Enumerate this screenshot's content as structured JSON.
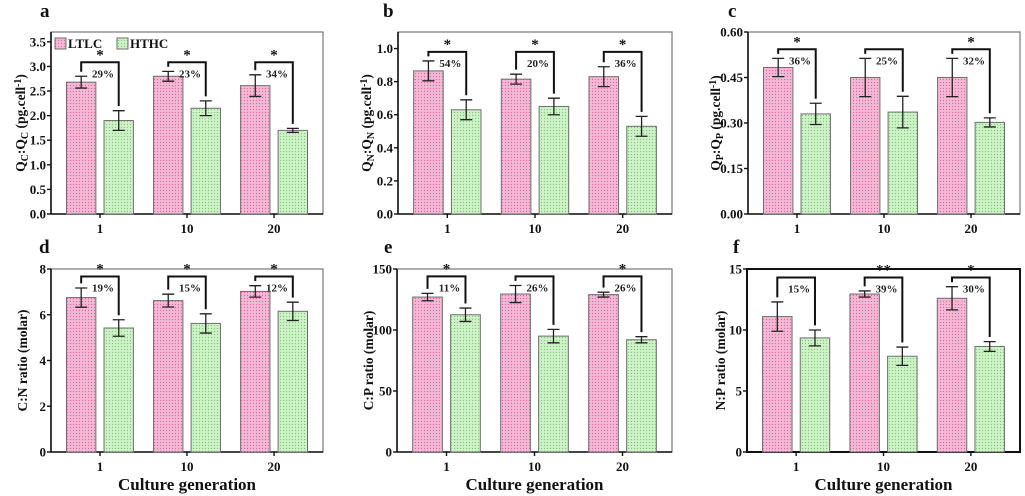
{
  "colors": {
    "LTLC": "#f5b8d4",
    "LTLC_dot": "#d9669e",
    "HTHC": "#ccf2c6",
    "HTHC_dot": "#7fc47a",
    "edge": "#6e6e6e"
  },
  "chart_data": [
    {
      "type": "bar",
      "letter": "a",
      "categories": [
        "1",
        "10",
        "20"
      ],
      "ylabel": [
        {
          "t": "Q"
        },
        {
          "t": "C",
          "sub": true
        },
        {
          "t": ":Q"
        },
        {
          "t": "C",
          "sub": true
        },
        {
          "t": " (pg.cell"
        },
        {
          "t": "-1",
          "sup": true
        },
        {
          "t": ")"
        }
      ],
      "xlabel": "",
      "ylim": [
        0,
        3.7
      ],
      "yticks": [
        "0.0",
        "0.5",
        "1.0",
        "1.5",
        "2.0",
        "2.5",
        "3.0",
        "3.5"
      ],
      "legend": {
        "placement": "top-left",
        "entries": [
          "LTLC",
          "HTHC"
        ]
      },
      "series": [
        {
          "name": "LTLC",
          "values": [
            2.68,
            2.8,
            2.61
          ],
          "errors": [
            0.12,
            0.1,
            0.22
          ]
        },
        {
          "name": "HTHC",
          "values": [
            1.9,
            2.15,
            1.7
          ],
          "errors": [
            0.2,
            0.15,
            0.04
          ]
        }
      ],
      "annotations": {
        "stars": [
          "*",
          "*",
          "*"
        ],
        "percents": [
          "29%",
          "23%",
          "34%"
        ]
      }
    },
    {
      "type": "bar",
      "letter": "b",
      "categories": [
        "1",
        "10",
        "20"
      ],
      "ylabel": [
        {
          "t": "Q"
        },
        {
          "t": "N",
          "sub": true
        },
        {
          "t": ":Q"
        },
        {
          "t": "N",
          "sub": true
        },
        {
          "t": " (pg.cell"
        },
        {
          "t": "-1",
          "sup": true
        },
        {
          "t": ")"
        }
      ],
      "xlabel": "",
      "ylim": [
        0,
        1.1
      ],
      "yticks": [
        "0.0",
        "0.2",
        "0.4",
        "0.6",
        "0.8",
        "1.0"
      ],
      "series": [
        {
          "name": "LTLC",
          "values": [
            0.865,
            0.815,
            0.83
          ],
          "errors": [
            0.06,
            0.03,
            0.06
          ]
        },
        {
          "name": "HTHC",
          "values": [
            0.63,
            0.65,
            0.53
          ],
          "errors": [
            0.06,
            0.05,
            0.06
          ]
        }
      ],
      "annotations": {
        "stars": [
          "*",
          "*",
          "*"
        ],
        "percents": [
          "54%",
          "20%",
          "36%"
        ]
      }
    },
    {
      "type": "bar",
      "letter": "c",
      "categories": [
        "1",
        "10",
        "20"
      ],
      "ylabel": [
        {
          "t": "Q"
        },
        {
          "t": "P",
          "sub": true
        },
        {
          "t": ":Q"
        },
        {
          "t": "P",
          "sub": true
        },
        {
          "t": " (pg.cell"
        },
        {
          "t": "-1",
          "sup": true
        },
        {
          "t": ")"
        }
      ],
      "xlabel": "",
      "ylim": [
        0,
        0.6
      ],
      "yticks": [
        "0.00",
        "0.15",
        "0.30",
        "0.45",
        "0.60"
      ],
      "series": [
        {
          "name": "LTLC",
          "values": [
            0.483,
            0.45,
            0.45
          ],
          "errors": [
            0.03,
            0.063,
            0.063
          ]
        },
        {
          "name": "HTHC",
          "values": [
            0.33,
            0.336,
            0.302
          ],
          "errors": [
            0.035,
            0.052,
            0.015
          ]
        }
      ],
      "annotations": {
        "stars": [
          "*",
          "",
          "*"
        ],
        "percents": [
          "36%",
          "25%",
          "32%"
        ]
      }
    },
    {
      "type": "bar",
      "letter": "d",
      "categories": [
        "1",
        "10",
        "20"
      ],
      "ylabel": [
        {
          "t": "C:N ratio (molar)"
        }
      ],
      "xlabel": "Culture generation",
      "ylim": [
        0,
        8
      ],
      "yticks": [
        "0",
        "2",
        "4",
        "6",
        "8"
      ],
      "series": [
        {
          "name": "LTLC",
          "values": [
            6.75,
            6.62,
            7.02
          ],
          "errors": [
            0.42,
            0.28,
            0.25
          ]
        },
        {
          "name": "HTHC",
          "values": [
            5.42,
            5.62,
            6.15
          ],
          "errors": [
            0.36,
            0.42,
            0.4
          ]
        }
      ],
      "annotations": {
        "stars": [
          "*",
          "*",
          "*"
        ],
        "percents": [
          "19%",
          "15%",
          "12%"
        ]
      }
    },
    {
      "type": "bar",
      "letter": "e",
      "categories": [
        "1",
        "10",
        "20"
      ],
      "ylabel": [
        {
          "t": "C:P ratio (molar)"
        }
      ],
      "xlabel": "Culture generation",
      "ylim": [
        0,
        150
      ],
      "yticks": [
        "0",
        "50",
        "100",
        "150"
      ],
      "series": [
        {
          "name": "LTLC",
          "values": [
            127,
            129.5,
            129
          ],
          "errors": [
            3,
            7,
            2
          ]
        },
        {
          "name": "HTHC",
          "values": [
            112.5,
            95,
            92
          ],
          "errors": [
            5.5,
            5.5,
            2.5
          ]
        }
      ],
      "annotations": {
        "stars": [
          "*",
          "",
          "*"
        ],
        "percents": [
          "11%",
          "26%",
          "26%"
        ]
      }
    },
    {
      "type": "bar",
      "letter": "f",
      "categories": [
        "1",
        "10",
        "20"
      ],
      "ylabel": [
        {
          "t": "N:P ratio (molar)"
        }
      ],
      "xlabel": "Culture generation",
      "ylim": [
        0,
        15
      ],
      "yticks": [
        "0",
        "5",
        "10",
        "15"
      ],
      "series": [
        {
          "name": "LTLC",
          "values": [
            11.1,
            12.95,
            12.6
          ],
          "errors": [
            1.2,
            0.25,
            0.95
          ]
        },
        {
          "name": "HTHC",
          "values": [
            9.35,
            7.85,
            8.65
          ],
          "errors": [
            0.65,
            0.75,
            0.4
          ]
        }
      ],
      "annotations": {
        "stars": [
          "",
          "**",
          "*"
        ],
        "percents": [
          "15%",
          "39%",
          "30%"
        ]
      }
    }
  ]
}
